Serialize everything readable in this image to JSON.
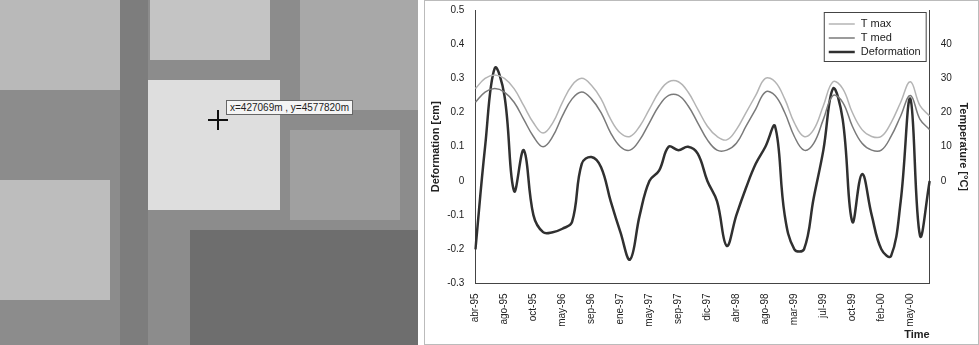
{
  "chart_data": {
    "type": "line",
    "x_label": "Time",
    "y_label": "Deformation [cm]",
    "y2_label": "Temperature [°C]",
    "categories": [
      "abr-95",
      null,
      null,
      "ago-95",
      null,
      null,
      "oct-95",
      null,
      null,
      "may-96",
      null,
      null,
      "sep-96",
      null,
      null,
      "ene-97",
      null,
      null,
      "may-97",
      null,
      null,
      "sep-97",
      null,
      null,
      "dic-97",
      null,
      null,
      "abr-98",
      null,
      null,
      "ago-98",
      null,
      null,
      "mar-99",
      null,
      null,
      "jul-99",
      null,
      null,
      "oct-99",
      null,
      null,
      "feb-00",
      null,
      null,
      "may-00",
      null,
      null
    ],
    "series": [
      {
        "name": "T max",
        "color": "#b4b4b4",
        "axis": "y2",
        "values": [
          27,
          30,
          31,
          30,
          27,
          22,
          17,
          14,
          17,
          23,
          28,
          30,
          28,
          24,
          18,
          14,
          13,
          16,
          21,
          26,
          29,
          29,
          26,
          21,
          16,
          13,
          12,
          15,
          20,
          25,
          30,
          29,
          24,
          17,
          13,
          15,
          22,
          29,
          27,
          20,
          15,
          13,
          13,
          17,
          23,
          29,
          22,
          19
        ]
      },
      {
        "name": "T med",
        "color": "#7a7a7a",
        "axis": "y2",
        "values": [
          23,
          26,
          27,
          26,
          23,
          18,
          13,
          10,
          13,
          19,
          24,
          26,
          24,
          20,
          14,
          10,
          9,
          12,
          17,
          22,
          25,
          25,
          22,
          17,
          12,
          9,
          9,
          11,
          16,
          21,
          26,
          25,
          20,
          13,
          9,
          11,
          18,
          25,
          23,
          16,
          11,
          9,
          9,
          13,
          19,
          25,
          18,
          15
        ]
      },
      {
        "name": "Deformation",
        "color": "#303030",
        "values": [
          -0.2,
          0.1,
          0.33,
          0.25,
          -0.03,
          0.09,
          -0.1,
          -0.15,
          -0.15,
          -0.14,
          -0.12,
          0.05,
          0.07,
          0.04,
          -0.06,
          -0.15,
          -0.23,
          -0.1,
          0.0,
          0.03,
          0.1,
          0.09,
          0.1,
          0.08,
          0.0,
          -0.06,
          -0.19,
          -0.1,
          -0.02,
          0.05,
          0.1,
          0.16,
          -0.1,
          -0.2,
          -0.2,
          -0.05,
          0.09,
          0.27,
          0.18,
          -0.12,
          0.02,
          -0.1,
          -0.2,
          -0.22,
          -0.06,
          0.24,
          -0.16,
          0.0
        ]
      }
    ],
    "ylim": [
      -0.3,
      0.5
    ],
    "yticks": [
      -0.3,
      -0.2,
      -0.1,
      0,
      0.1,
      0.2,
      0.3,
      0.4,
      0.5
    ],
    "y2lim": [
      -30,
      50
    ],
    "y2ticks": [
      0,
      10,
      20,
      30,
      40
    ],
    "grid": false,
    "legend": "upper right"
  },
  "photo": {
    "label": "x=427069m , y=4577820m"
  }
}
